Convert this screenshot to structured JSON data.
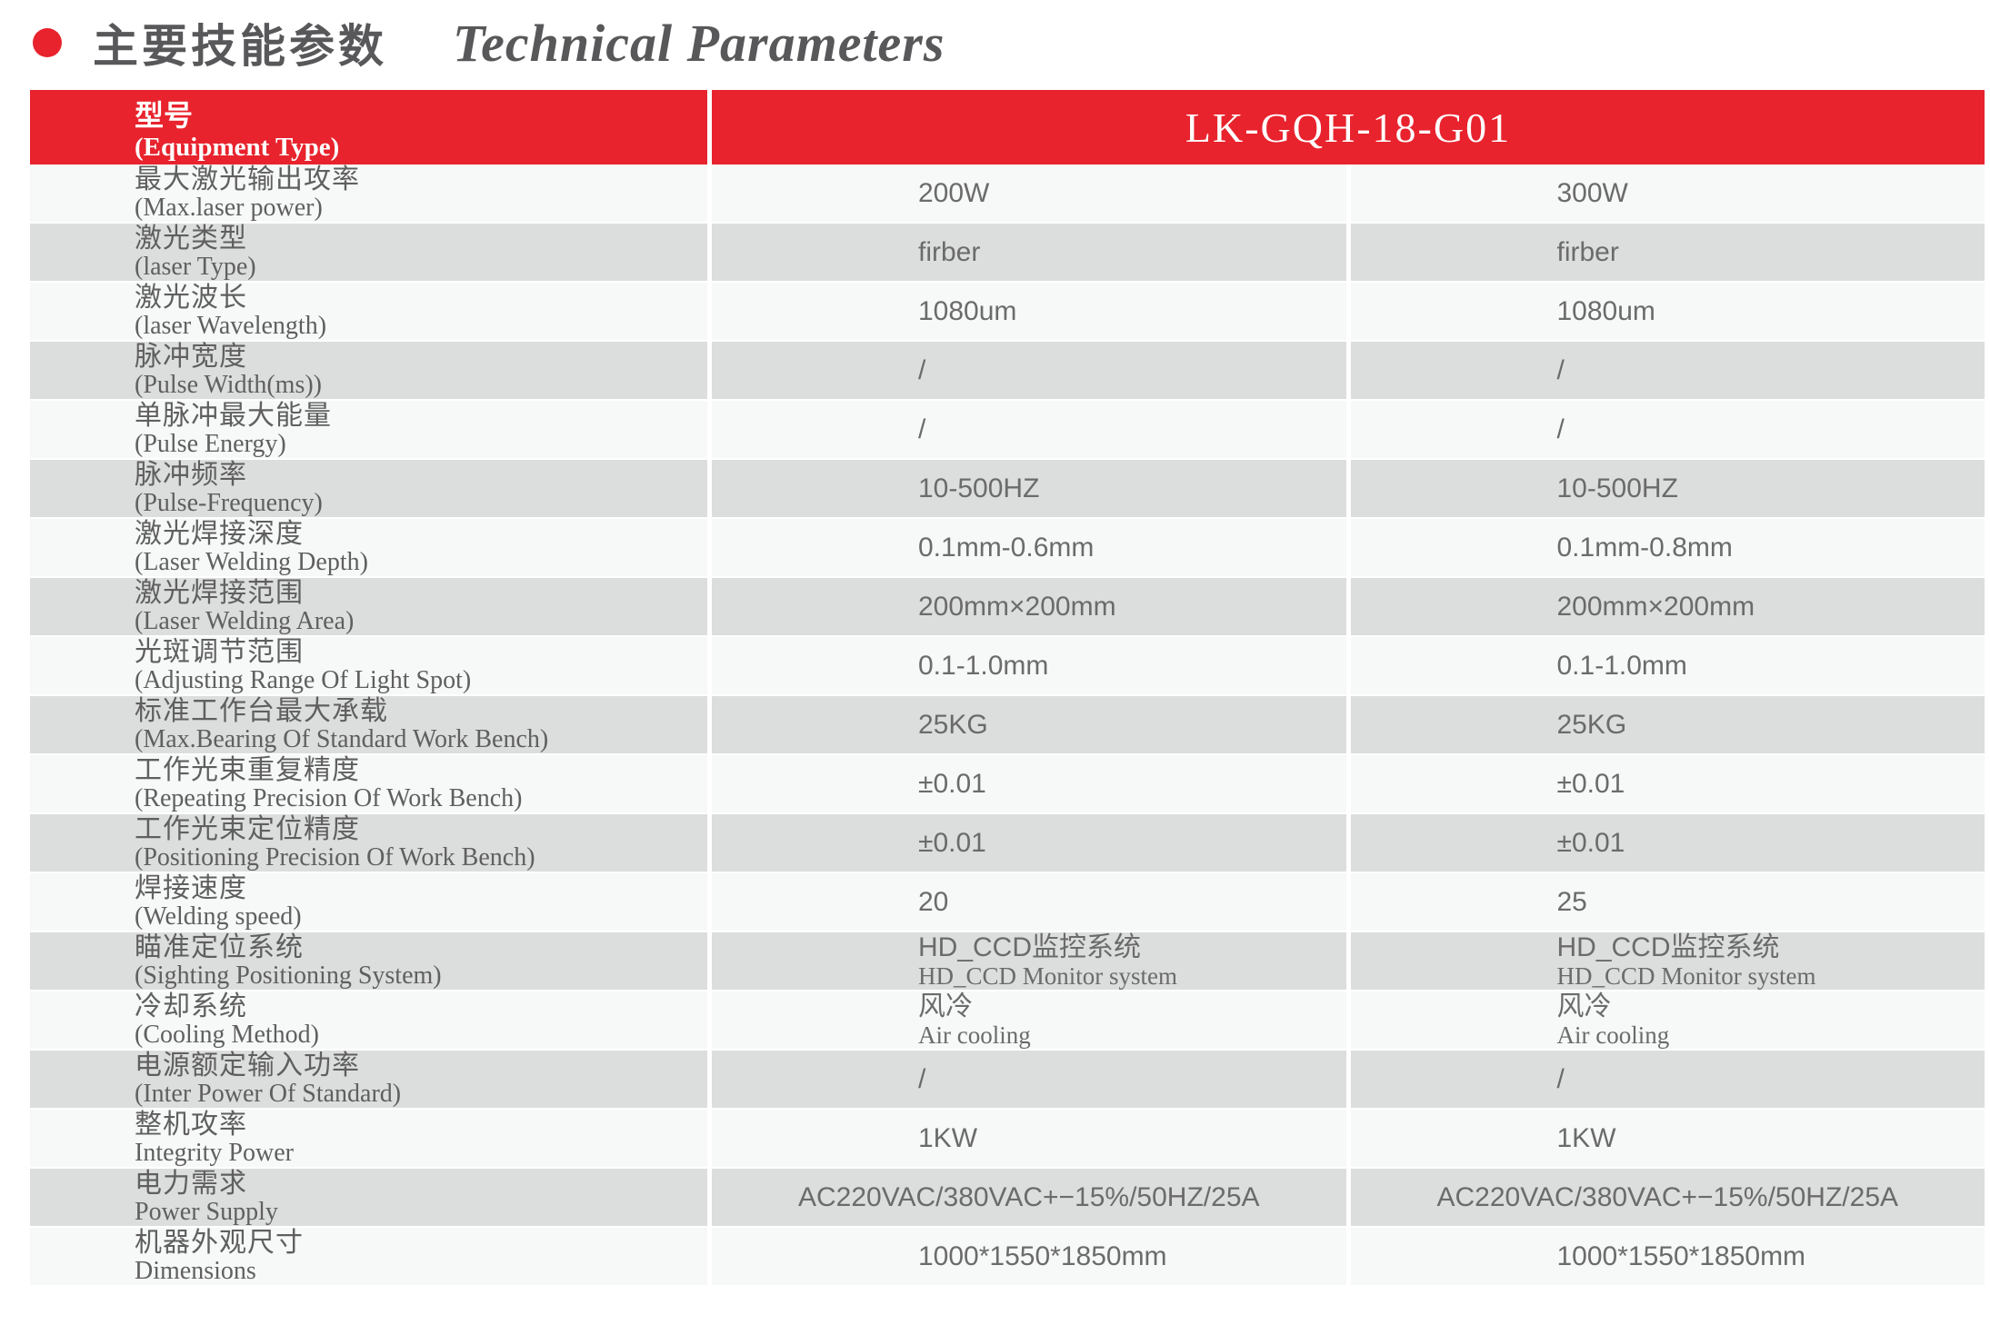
{
  "page": {
    "title_zh": "主要技能参数",
    "title_en": "Technical Parameters"
  },
  "colors": {
    "accent": "#e8232d",
    "row_light": "#f7f8f8",
    "row_gray": "#dcdddd",
    "title_gray": "#58585a",
    "label_gray": "#5f5f60",
    "value_gray": "#6b6b6c"
  },
  "table": {
    "header": {
      "label_zh": "型号",
      "label_en": "(Equipment Type)",
      "model": "LK-GQH-18-G01"
    },
    "rows": [
      {
        "label_zh": "最大激光输出攻率",
        "label_en": "(Max.laser power)",
        "col1": "200W",
        "col2": "300W"
      },
      {
        "label_zh": "激光类型",
        "label_en": "(laser Type)",
        "col1": "firber",
        "col2": "firber"
      },
      {
        "label_zh": "激光波长",
        "label_en": "(laser Wavelength)",
        "col1": "1080um",
        "col2": "1080um"
      },
      {
        "label_zh": "脉冲宽度",
        "label_en": "(Pulse Width(ms))",
        "col1": "/",
        "col2": "/"
      },
      {
        "label_zh": "单脉冲最大能量",
        "label_en": "(Pulse Energy)",
        "col1": "/",
        "col2": "/"
      },
      {
        "label_zh": "脉冲频率",
        "label_en": "(Pulse-Frequency)",
        "col1": "10-500HZ",
        "col2": "10-500HZ"
      },
      {
        "label_zh": "激光焊接深度",
        "label_en": "(Laser Welding Depth)",
        "col1": "0.1mm-0.6mm",
        "col2": "0.1mm-0.8mm"
      },
      {
        "label_zh": "激光焊接范围",
        "label_en": "(Laser Welding Area)",
        "col1": "200mm×200mm",
        "col2": "200mm×200mm"
      },
      {
        "label_zh": "光斑调节范围",
        "label_en": "(Adjusting Range Of Light Spot)",
        "col1": "0.1-1.0mm",
        "col2": "0.1-1.0mm"
      },
      {
        "label_zh": "标准工作台最大承载",
        "label_en": "(Max.Bearing Of Standard Work Bench)",
        "col1": "25KG",
        "col2": "25KG"
      },
      {
        "label_zh": "工作光束重复精度",
        "label_en": "(Repeating Precision Of Work Bench)",
        "col1": "±0.01",
        "col2": "±0.01"
      },
      {
        "label_zh": "工作光束定位精度",
        "label_en": "(Positioning Precision Of Work Bench)",
        "col1": "±0.01",
        "col2": "±0.01"
      },
      {
        "label_zh": "焊接速度",
        "label_en": "(Welding speed)",
        "col1": "20",
        "col2": "25"
      },
      {
        "label_zh": "瞄准定位系统",
        "label_en": "(Sighting Positioning System)",
        "col1": {
          "zh": "HD_CCD监控系统",
          "en": "HD_CCD Monitor system"
        },
        "col2": {
          "zh": "HD_CCD监控系统",
          "en": "HD_CCD Monitor system"
        }
      },
      {
        "label_zh": "冷却系统",
        "label_en": "(Cooling Method)",
        "col1": {
          "zh": "风冷",
          "en": "Air cooling"
        },
        "col2": {
          "zh": "风冷",
          "en": "Air cooling"
        }
      },
      {
        "label_zh": "电源额定输入功率",
        "label_en": "(Inter Power Of Standard)",
        "col1": "/",
        "col2": "/"
      },
      {
        "label_zh": "整机攻率",
        "label_en": "Integrity Power",
        "col1": "1KW",
        "col2": "1KW"
      },
      {
        "label_zh": "电力需求",
        "label_en": "Power Supply",
        "col1": "AC220VAC/380VAC+−15%/50HZ/25A",
        "col2": "AC220VAC/380VAC+−15%/50HZ/25A"
      },
      {
        "label_zh": "机器外观尺寸",
        "label_en": "Dimensions",
        "col1": "1000*1550*1850mm",
        "col2": "1000*1550*1850mm"
      }
    ]
  }
}
